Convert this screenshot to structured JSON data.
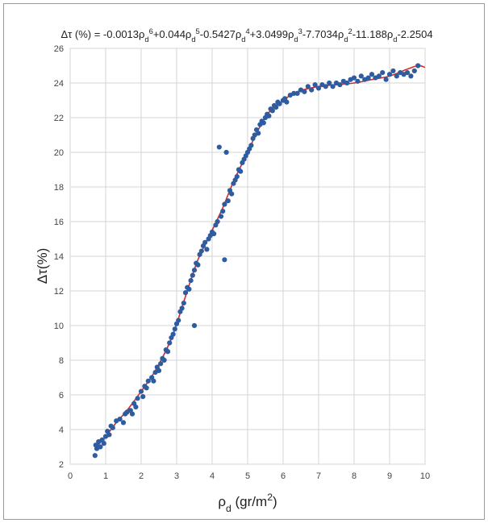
{
  "chart_data": {
    "type": "scatter",
    "title_parts": [
      {
        "t": "Δτ (%) = -0.0013ρ",
        "k": "n"
      },
      {
        "t": "d",
        "k": "sub"
      },
      {
        "t": "6",
        "k": "sup"
      },
      {
        "t": "+0.044ρ",
        "k": "n"
      },
      {
        "t": "d",
        "k": "sub"
      },
      {
        "t": "5",
        "k": "sup"
      },
      {
        "t": "-0.5427ρ",
        "k": "n"
      },
      {
        "t": "d",
        "k": "sub"
      },
      {
        "t": "4",
        "k": "sup"
      },
      {
        "t": "+3.0499ρ",
        "k": "n"
      },
      {
        "t": "d",
        "k": "sub"
      },
      {
        "t": "3",
        "k": "sup"
      },
      {
        "t": "-7.7034ρ",
        "k": "n"
      },
      {
        "t": "d",
        "k": "sub"
      },
      {
        "t": "2",
        "k": "sup"
      },
      {
        "t": "-11.188ρ",
        "k": "n"
      },
      {
        "t": "d",
        "k": "sub"
      },
      {
        "t": "-2.2504",
        "k": "n"
      }
    ],
    "xlabel_parts": [
      {
        "t": "ρ",
        "k": "n"
      },
      {
        "t": "d",
        "k": "sub"
      },
      {
        "t": " (gr/m",
        "k": "n"
      },
      {
        "t": "2",
        "k": "sup"
      },
      {
        "t": ")",
        "k": "n"
      }
    ],
    "ylabel": "Δτ(%)",
    "xlim": [
      0,
      10
    ],
    "ylim": [
      2,
      26
    ],
    "xticks": [
      "0",
      "1",
      "2",
      "3",
      "4",
      "5",
      "6",
      "7",
      "8",
      "9",
      "10"
    ],
    "yticks": [
      "2",
      "4",
      "6",
      "8",
      "10",
      "12",
      "14",
      "16",
      "18",
      "20",
      "22",
      "24",
      "26"
    ],
    "grid": true,
    "series": [
      {
        "kind": "points",
        "color": "#2e5c9e",
        "points": [
          [
            0.7,
            2.5
          ],
          [
            0.72,
            3.1
          ],
          [
            0.75,
            2.9
          ],
          [
            0.8,
            3.3
          ],
          [
            0.85,
            3.0
          ],
          [
            0.9,
            3.4
          ],
          [
            0.95,
            3.2
          ],
          [
            1.0,
            3.6
          ],
          [
            1.05,
            3.9
          ],
          [
            1.1,
            3.7
          ],
          [
            1.15,
            4.2
          ],
          [
            1.2,
            4.1
          ],
          [
            1.3,
            4.5
          ],
          [
            1.4,
            4.6
          ],
          [
            1.5,
            4.4
          ],
          [
            1.55,
            4.9
          ],
          [
            1.6,
            5.0
          ],
          [
            1.7,
            5.1
          ],
          [
            1.75,
            4.9
          ],
          [
            1.8,
            5.5
          ],
          [
            1.85,
            5.3
          ],
          [
            1.9,
            5.8
          ],
          [
            2.0,
            6.2
          ],
          [
            2.05,
            5.9
          ],
          [
            2.1,
            6.5
          ],
          [
            2.15,
            6.4
          ],
          [
            2.2,
            6.8
          ],
          [
            2.3,
            7.0
          ],
          [
            2.35,
            6.8
          ],
          [
            2.4,
            7.3
          ],
          [
            2.45,
            7.6
          ],
          [
            2.5,
            7.4
          ],
          [
            2.55,
            7.8
          ],
          [
            2.6,
            8.1
          ],
          [
            2.65,
            8.0
          ],
          [
            2.7,
            8.6
          ],
          [
            2.75,
            8.5
          ],
          [
            2.8,
            9.0
          ],
          [
            2.85,
            9.3
          ],
          [
            2.9,
            9.5
          ],
          [
            2.95,
            9.8
          ],
          [
            3.0,
            10.1
          ],
          [
            3.05,
            10.3
          ],
          [
            3.1,
            10.8
          ],
          [
            3.15,
            11.0
          ],
          [
            3.2,
            11.3
          ],
          [
            3.25,
            11.9
          ],
          [
            3.3,
            12.2
          ],
          [
            3.35,
            12.1
          ],
          [
            3.4,
            12.6
          ],
          [
            3.45,
            12.9
          ],
          [
            3.5,
            10.0
          ],
          [
            3.5,
            13.2
          ],
          [
            3.55,
            13.6
          ],
          [
            3.6,
            13.5
          ],
          [
            3.65,
            14.1
          ],
          [
            3.7,
            14.3
          ],
          [
            3.75,
            14.6
          ],
          [
            3.8,
            14.8
          ],
          [
            3.85,
            14.4
          ],
          [
            3.9,
            15.0
          ],
          [
            3.95,
            15.2
          ],
          [
            4.0,
            15.4
          ],
          [
            4.05,
            15.3
          ],
          [
            4.1,
            15.8
          ],
          [
            4.15,
            16.0
          ],
          [
            4.2,
            20.3
          ],
          [
            4.25,
            16.3
          ],
          [
            4.3,
            16.6
          ],
          [
            4.35,
            13.8
          ],
          [
            4.35,
            17.0
          ],
          [
            4.4,
            20.0
          ],
          [
            4.45,
            17.2
          ],
          [
            4.5,
            17.8
          ],
          [
            4.55,
            17.6
          ],
          [
            4.6,
            18.2
          ],
          [
            4.65,
            18.4
          ],
          [
            4.7,
            18.6
          ],
          [
            4.75,
            19.0
          ],
          [
            4.8,
            18.9
          ],
          [
            4.85,
            19.4
          ],
          [
            4.9,
            19.6
          ],
          [
            4.95,
            19.8
          ],
          [
            5.0,
            20.0
          ],
          [
            5.05,
            20.2
          ],
          [
            5.1,
            20.4
          ],
          [
            5.15,
            20.8
          ],
          [
            5.2,
            21.0
          ],
          [
            5.25,
            21.3
          ],
          [
            5.3,
            21.1
          ],
          [
            5.35,
            21.6
          ],
          [
            5.4,
            21.8
          ],
          [
            5.45,
            21.7
          ],
          [
            5.5,
            22.0
          ],
          [
            5.55,
            22.2
          ],
          [
            5.6,
            22.1
          ],
          [
            5.65,
            22.5
          ],
          [
            5.7,
            22.4
          ],
          [
            5.75,
            22.7
          ],
          [
            5.8,
            22.6
          ],
          [
            5.85,
            22.9
          ],
          [
            5.9,
            22.8
          ],
          [
            6.0,
            23.0
          ],
          [
            6.05,
            23.1
          ],
          [
            6.1,
            22.9
          ],
          [
            6.2,
            23.3
          ],
          [
            6.3,
            23.4
          ],
          [
            6.4,
            23.4
          ],
          [
            6.5,
            23.6
          ],
          [
            6.6,
            23.5
          ],
          [
            6.7,
            23.8
          ],
          [
            6.8,
            23.6
          ],
          [
            6.9,
            23.9
          ],
          [
            7.0,
            23.7
          ],
          [
            7.1,
            23.9
          ],
          [
            7.2,
            23.8
          ],
          [
            7.3,
            24.0
          ],
          [
            7.4,
            23.8
          ],
          [
            7.5,
            24.0
          ],
          [
            7.6,
            23.9
          ],
          [
            7.7,
            24.1
          ],
          [
            7.8,
            24.0
          ],
          [
            7.9,
            24.2
          ],
          [
            8.0,
            24.3
          ],
          [
            8.1,
            24.1
          ],
          [
            8.2,
            24.4
          ],
          [
            8.3,
            24.2
          ],
          [
            8.4,
            24.3
          ],
          [
            8.5,
            24.5
          ],
          [
            8.6,
            24.3
          ],
          [
            8.7,
            24.4
          ],
          [
            8.8,
            24.6
          ],
          [
            8.9,
            24.2
          ],
          [
            9.0,
            24.5
          ],
          [
            9.1,
            24.7
          ],
          [
            9.2,
            24.4
          ],
          [
            9.3,
            24.6
          ],
          [
            9.4,
            24.5
          ],
          [
            9.5,
            24.6
          ],
          [
            9.6,
            24.4
          ],
          [
            9.7,
            24.7
          ],
          [
            9.8,
            25.0
          ]
        ]
      },
      {
        "kind": "curve",
        "color": "#d42a2a",
        "points": [
          [
            0.7,
            2.9
          ],
          [
            1.0,
            3.6
          ],
          [
            1.3,
            4.4
          ],
          [
            1.6,
            5.1
          ],
          [
            2.0,
            6.2
          ],
          [
            2.4,
            7.4
          ],
          [
            2.8,
            9.0
          ],
          [
            3.0,
            10.1
          ],
          [
            3.3,
            12.0
          ],
          [
            3.6,
            13.8
          ],
          [
            4.0,
            15.5
          ],
          [
            4.3,
            16.8
          ],
          [
            4.6,
            18.3
          ],
          [
            5.0,
            20.0
          ],
          [
            5.3,
            21.3
          ],
          [
            5.6,
            22.3
          ],
          [
            6.0,
            23.0
          ],
          [
            6.4,
            23.5
          ],
          [
            7.0,
            23.8
          ],
          [
            7.5,
            23.9
          ],
          [
            8.0,
            24.0
          ],
          [
            8.5,
            24.2
          ],
          [
            9.0,
            24.4
          ],
          [
            9.5,
            24.8
          ],
          [
            9.8,
            25.0
          ],
          [
            10.0,
            24.9
          ]
        ]
      }
    ]
  }
}
